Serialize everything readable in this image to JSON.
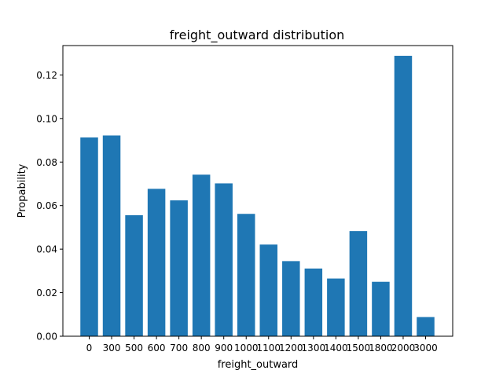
{
  "chart_data": {
    "type": "bar",
    "title": "freight_outward distribution",
    "xlabel": "freight_outward",
    "ylabel": "Propability",
    "categories": [
      "0",
      "300",
      "500",
      "600",
      "700",
      "800",
      "900",
      "1000",
      "1100",
      "1200",
      "1300",
      "1400",
      "1500",
      "1800",
      "2000",
      "3000"
    ],
    "values": [
      0.0913,
      0.0922,
      0.0556,
      0.0677,
      0.0624,
      0.0742,
      0.0702,
      0.0562,
      0.0421,
      0.0345,
      0.0311,
      0.0265,
      0.0483,
      0.025,
      0.1288,
      0.0088
    ],
    "ylim": [
      0,
      0.1335
    ],
    "yticks": [
      0.0,
      0.02,
      0.04,
      0.06,
      0.08,
      0.1,
      0.12
    ],
    "ytick_labels": [
      "0.00",
      "0.02",
      "0.04",
      "0.06",
      "0.08",
      "0.10",
      "0.12"
    ],
    "grid": false,
    "colors": {
      "bar": "#1f77b4",
      "axes": "#000000",
      "background": "#ffffff"
    }
  }
}
